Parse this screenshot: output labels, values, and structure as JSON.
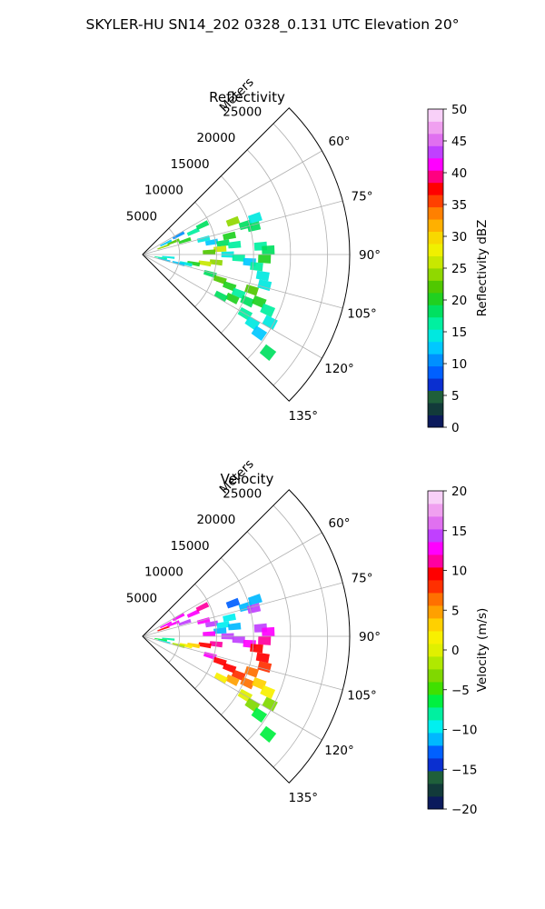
{
  "figure": {
    "title": "SKYLER-HU  SN14_202  0328_0.131 UTC Elevation 20°"
  },
  "chart_data": [
    {
      "type": "heatmap",
      "projection": "polar-sector",
      "title": "Reflectivity",
      "range_label": "Meters",
      "range_ticks": [
        5000,
        10000,
        15000,
        20000,
        25000
      ],
      "range_tick_labels": [
        "5000",
        "10000",
        "15000",
        "20000",
        "25000"
      ],
      "range_max": 28000,
      "azimuth_range": [
        45,
        135
      ],
      "azimuth_ticks": [
        60,
        75,
        90,
        105,
        120,
        135
      ],
      "azimuth_tick_labels": [
        "60°",
        "75°",
        "90°",
        "105°",
        "120°",
        "135°"
      ],
      "grid": true,
      "colorbar": {
        "label": "Reflectivity dBZ",
        "min": 0,
        "max": 50,
        "ticks": [
          0,
          5,
          10,
          15,
          20,
          25,
          30,
          35,
          40,
          45,
          50
        ],
        "tick_labels": [
          "0",
          "5",
          "10",
          "15",
          "20",
          "25",
          "30",
          "35",
          "40",
          "45",
          "50"
        ],
        "colors": [
          "#0b1a5c",
          "#123a3a",
          "#1f5f3a",
          "#0a2fd0",
          "#0060ff",
          "#0090ff",
          "#00c8ff",
          "#00e8e0",
          "#00f0a0",
          "#00e060",
          "#20d020",
          "#50c800",
          "#90d800",
          "#c8e800",
          "#f0f000",
          "#f8d800",
          "#ffb000",
          "#ff8000",
          "#ff4000",
          "#ff0000",
          "#ff0080",
          "#ff00ff",
          "#c040ff",
          "#e070f0",
          "#f0a0f0",
          "#f8d0f8"
        ]
      },
      "cells": [
        [
          70,
          3000,
          24
        ],
        [
          68,
          4500,
          22
        ],
        [
          72,
          6000,
          20
        ],
        [
          66,
          7500,
          16
        ],
        [
          64,
          9000,
          18
        ],
        [
          76,
          8500,
          15
        ],
        [
          80,
          9500,
          12
        ],
        [
          82,
          11000,
          18
        ],
        [
          84,
          12500,
          16
        ],
        [
          78,
          12000,
          20
        ],
        [
          86,
          10500,
          25
        ],
        [
          88,
          9000,
          22
        ],
        [
          90,
          11500,
          14
        ],
        [
          92,
          13000,
          17
        ],
        [
          94,
          14500,
          12
        ],
        [
          96,
          10000,
          24
        ],
        [
          98,
          8500,
          26
        ],
        [
          100,
          7000,
          20
        ],
        [
          102,
          6000,
          15
        ],
        [
          104,
          5000,
          12
        ],
        [
          106,
          9500,
          18
        ],
        [
          108,
          11000,
          22
        ],
        [
          110,
          12500,
          20
        ],
        [
          112,
          14000,
          16
        ],
        [
          114,
          15500,
          18
        ],
        [
          116,
          13500,
          21
        ],
        [
          118,
          12000,
          19
        ],
        [
          120,
          16000,
          17
        ],
        [
          122,
          17500,
          15
        ],
        [
          124,
          19000,
          12
        ],
        [
          74,
          14500,
          18
        ],
        [
          72,
          16000,
          15
        ],
        [
          70,
          13000,
          24
        ],
        [
          76,
          15500,
          19
        ],
        [
          86,
          16000,
          16
        ],
        [
          88,
          17000,
          18
        ],
        [
          92,
          16500,
          20
        ],
        [
          96,
          15500,
          17
        ],
        [
          100,
          16500,
          15
        ],
        [
          104,
          17000,
          14
        ],
        [
          108,
          15500,
          22
        ],
        [
          112,
          17000,
          20
        ],
        [
          114,
          18500,
          16
        ],
        [
          118,
          19500,
          14
        ],
        [
          128,
          21500,
          18
        ],
        [
          62,
          5500,
          10
        ],
        [
          64,
          3500,
          12
        ],
        [
          96,
          3500,
          14
        ],
        [
          100,
          2500,
          16
        ],
        [
          104,
          3000,
          12
        ]
      ]
    },
    {
      "type": "heatmap",
      "projection": "polar-sector",
      "title": "Velocity",
      "range_label": "Meters",
      "range_ticks": [
        5000,
        10000,
        15000,
        20000,
        25000
      ],
      "range_tick_labels": [
        "5000",
        "10000",
        "15000",
        "20000",
        "25000"
      ],
      "range_max": 28000,
      "azimuth_range": [
        45,
        135
      ],
      "azimuth_ticks": [
        60,
        75,
        90,
        105,
        120,
        135
      ],
      "azimuth_tick_labels": [
        "60°",
        "75°",
        "90°",
        "105°",
        "120°",
        "135°"
      ],
      "grid": true,
      "colorbar": {
        "label": "Velocity (m/s)",
        "min": -20,
        "max": 20,
        "ticks": [
          -20,
          -15,
          -10,
          -5,
          0,
          5,
          10,
          15,
          20
        ],
        "tick_labels": [
          "−20",
          "−15",
          "−10",
          "−5",
          "0",
          "5",
          "10",
          "15",
          "20"
        ],
        "colors": [
          "#0b1a5c",
          "#123a3a",
          "#1f5f3a",
          "#0a2fd0",
          "#0060ff",
          "#00b8ff",
          "#00f0f0",
          "#00f0a0",
          "#00f040",
          "#40e000",
          "#80d800",
          "#b0e800",
          "#e0f000",
          "#f8f000",
          "#ffd000",
          "#ffa000",
          "#ff7000",
          "#ff3000",
          "#ff0000",
          "#ff00a0",
          "#ff00ff",
          "#c040ff",
          "#e070f0",
          "#f0a0f0",
          "#f8d0f8"
        ]
      },
      "cells": [
        [
          70,
          3000,
          10
        ],
        [
          68,
          4500,
          12
        ],
        [
          72,
          6000,
          14
        ],
        [
          66,
          7500,
          13
        ],
        [
          64,
          9000,
          11
        ],
        [
          76,
          8500,
          12
        ],
        [
          80,
          9500,
          14
        ],
        [
          82,
          11000,
          -10
        ],
        [
          84,
          12500,
          -12
        ],
        [
          78,
          12000,
          -9
        ],
        [
          86,
          10500,
          -11
        ],
        [
          88,
          9000,
          13
        ],
        [
          90,
          11500,
          14
        ],
        [
          92,
          13000,
          15
        ],
        [
          94,
          14500,
          13
        ],
        [
          96,
          10000,
          11
        ],
        [
          98,
          8500,
          9
        ],
        [
          100,
          7000,
          3
        ],
        [
          102,
          6000,
          2
        ],
        [
          104,
          5000,
          -2
        ],
        [
          106,
          9500,
          12
        ],
        [
          108,
          11000,
          10
        ],
        [
          110,
          12500,
          9
        ],
        [
          112,
          14000,
          8
        ],
        [
          114,
          15500,
          6
        ],
        [
          116,
          13500,
          4
        ],
        [
          118,
          12000,
          2
        ],
        [
          120,
          16000,
          0
        ],
        [
          122,
          17500,
          -4
        ],
        [
          124,
          19000,
          -6
        ],
        [
          74,
          14500,
          -12
        ],
        [
          72,
          16000,
          -11
        ],
        [
          70,
          13000,
          -13
        ],
        [
          76,
          15500,
          15
        ],
        [
          86,
          16000,
          14
        ],
        [
          88,
          17000,
          13
        ],
        [
          92,
          16500,
          11
        ],
        [
          96,
          15500,
          10
        ],
        [
          100,
          16500,
          9
        ],
        [
          104,
          17000,
          8
        ],
        [
          108,
          15500,
          7
        ],
        [
          112,
          17000,
          3
        ],
        [
          114,
          18500,
          1
        ],
        [
          118,
          19500,
          -3
        ],
        [
          128,
          21500,
          -6
        ],
        [
          62,
          5500,
          12
        ],
        [
          64,
          3500,
          13
        ],
        [
          96,
          3500,
          -8
        ],
        [
          100,
          2500,
          -7
        ],
        [
          104,
          3000,
          -9
        ]
      ]
    }
  ]
}
